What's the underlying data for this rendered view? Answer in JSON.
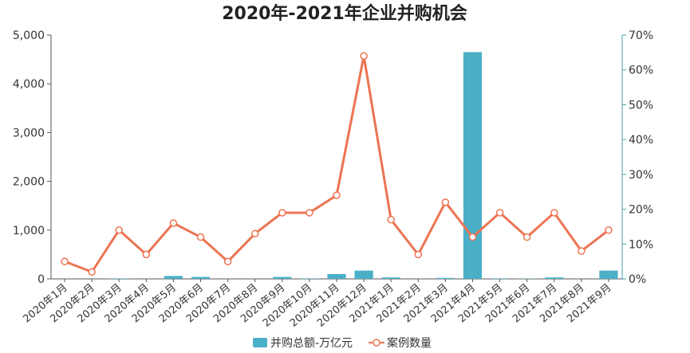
{
  "chart_data": {
    "type": "bar+line",
    "title": "2020年-2021年企业并购机会",
    "categories": [
      "2020年1月",
      "2020年2月",
      "2020年3月",
      "2020年4月",
      "2020年5月",
      "2020年6月",
      "2020年7月",
      "2020年8月",
      "2020年9月",
      "2020年10月",
      "2020年11月",
      "2020年12月",
      "2021年1月",
      "2021年2月",
      "2021年3月",
      "2021年4月",
      "2021年5月",
      "2021年6月",
      "2021年7月",
      "2021年8月",
      "2021年9月"
    ],
    "series": [
      {
        "name": "并购总额-万亿元",
        "kind": "bar",
        "axis": "left",
        "color": "#4bafc8",
        "values": [
          0,
          0,
          10,
          0,
          60,
          40,
          0,
          0,
          40,
          10,
          100,
          170,
          30,
          0,
          20,
          4650,
          10,
          5,
          30,
          0,
          170
        ]
      },
      {
        "name": "案例数量",
        "kind": "line",
        "axis": "right",
        "color": "#ec7451",
        "values": [
          0.05,
          0.02,
          0.14,
          0.07,
          0.16,
          0.12,
          0.05,
          0.13,
          0.19,
          0.19,
          0.24,
          0.64,
          0.17,
          0.07,
          0.22,
          0.12,
          0.19,
          0.12,
          0.19,
          0.08,
          0.14
        ]
      }
    ],
    "y_left": {
      "min": 0,
      "max": 5000,
      "ticks": [
        "0",
        "1,000",
        "2,000",
        "3,000",
        "4,000",
        "5,000"
      ]
    },
    "y_right": {
      "min": 0,
      "max": 0.7,
      "ticks": [
        "0%",
        "10%",
        "20%",
        "30%",
        "40%",
        "50%",
        "60%",
        "70%"
      ],
      "color": "#4a9fb0"
    },
    "legend_position": "bottom-center",
    "grid": false
  }
}
